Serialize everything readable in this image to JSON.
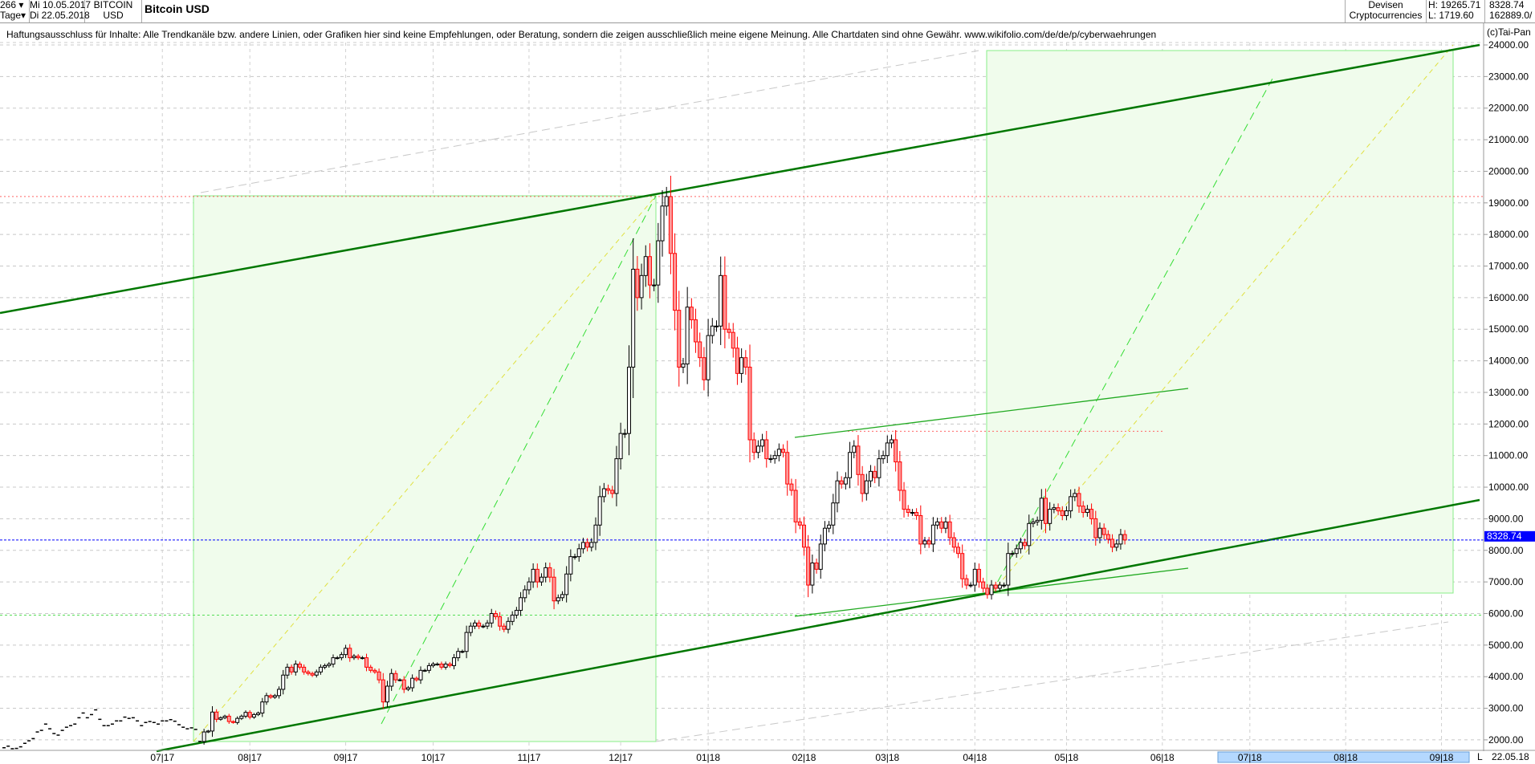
{
  "header": {
    "bar_count": "266",
    "period_unit": "Tage",
    "start_date": "Mi 10.05.2017",
    "end_date": "Di 22.05.2018",
    "symbol": "BITCOIN",
    "currency": "USD",
    "title": "Bitcoin USD",
    "category": "Devisen",
    "subcategory": "Cryptocurrencies",
    "high": "H: 19265.71",
    "low": "L: 1719.60",
    "last": "8328.74",
    "volume": "162889.0/"
  },
  "disclaimer": "Haftungsausschluss für Inhalte: Alle Trendkanäle bzw. andere Linien, oder Grafiken hier sind keine Empfehlungen, oder Beratung, sondern die zeigen ausschließlich meine eigene Meinung. Alle Chartdaten sind ohne Gewähr.  www.wikifolio.com/de/de/p/cyberwaehrungen",
  "copyright": "(c)Tai-Pan",
  "footer": {
    "mode": "L",
    "date": "22.05.18"
  },
  "colors": {
    "up": "#000000",
    "down": "#ff0000",
    "down_fill": "#ff9999",
    "channel": "#007700",
    "box": "#88ee88",
    "box_fill": "#f0fcec",
    "last_price": "#0000ff"
  },
  "chart_data": {
    "type": "candlestick",
    "ylim": [
      1500,
      24500
    ],
    "y_ticks": [
      "24000.00",
      "23000.00",
      "22000.00",
      "21000.00",
      "20000.00",
      "19000.00",
      "18000.00",
      "17000.00",
      "16000.00",
      "15000.00",
      "14000.00",
      "13000.00",
      "12000.00",
      "11000.00",
      "10000.00",
      "9000.00",
      "8000.00",
      "7000.00",
      "6000.00",
      "5000.00",
      "4000.00",
      "3000.00",
      "2000.00"
    ],
    "x_ticks": [
      {
        "label": "07|17",
        "bar": 38
      },
      {
        "label": "08|17",
        "bar": 59
      },
      {
        "label": "09|17",
        "bar": 82
      },
      {
        "label": "10|17",
        "bar": 103
      },
      {
        "label": "11|17",
        "bar": 126
      },
      {
        "label": "12|17",
        "bar": 148
      },
      {
        "label": "01|18",
        "bar": 169
      },
      {
        "label": "02|18",
        "bar": 192
      },
      {
        "label": "03|18",
        "bar": 212
      },
      {
        "label": "04|18",
        "bar": 233
      },
      {
        "label": "05|18",
        "bar": 255
      },
      {
        "label": "06|18",
        "bar": 278
      },
      {
        "label": "07|18",
        "bar": 299
      },
      {
        "label": "08|18",
        "bar": 322
      },
      {
        "label": "09|18",
        "bar": 345
      }
    ],
    "last_price": 8328.74,
    "closes": [
      1750,
      1800,
      1720,
      1730,
      1780,
      1890,
      1970,
      2040,
      2250,
      2300,
      2500,
      2350,
      2200,
      2150,
      2300,
      2400,
      2450,
      2500,
      2700,
      2850,
      2700,
      2800,
      2950,
      2650,
      2450,
      2450,
      2500,
      2600,
      2600,
      2720,
      2680,
      2700,
      2600,
      2450,
      2550,
      2580,
      2550,
      2500,
      2600,
      2600,
      2640,
      2590,
      2480,
      2400,
      2350,
      2380,
      2330,
      1950,
      2250,
      2280,
      2880,
      2650,
      2700,
      2750,
      2580,
      2550,
      2680,
      2750,
      2870,
      2720,
      2800,
      2850,
      3200,
      3400,
      3350,
      3400,
      3600,
      4050,
      4300,
      4150,
      4400,
      4300,
      4150,
      4100,
      4050,
      4150,
      4300,
      4350,
      4400,
      4600,
      4600,
      4700,
      4900,
      4600,
      4650,
      4600,
      4600,
      4300,
      4200,
      4150,
      3900,
      3200,
      3700,
      4100,
      3900,
      3900,
      3600,
      3650,
      3950,
      3900,
      4200,
      4200,
      4350,
      4400,
      4400,
      4300,
      4400,
      4350,
      4600,
      4800,
      4800,
      5400,
      5600,
      5700,
      5600,
      5600,
      5700,
      6000,
      5900,
      5600,
      5500,
      5750,
      5950,
      6100,
      6500,
      6750,
      7000,
      7400,
      7000,
      7150,
      7450,
      7150,
      6400,
      6500,
      6600,
      7250,
      7800,
      7800,
      8050,
      8250,
      8100,
      8250,
      8800,
      9700,
      9950,
      9900,
      9800,
      10900,
      11700,
      11700,
      13800,
      16900,
      16000,
      16700,
      17300,
      16400,
      16400,
      17800,
      18900,
      19200,
      17400,
      15600,
      13800,
      13900,
      15700,
      15300,
      14600,
      14100,
      13400,
      14800,
      15100,
      15100,
      16700,
      15000,
      14900,
      14400,
      13600,
      14100,
      13800,
      11500,
      11100,
      11300,
      11500,
      10900,
      10900,
      11000,
      11200,
      11100,
      10100,
      9900,
      8900,
      8800,
      8100,
      6900,
      7600,
      7400,
      8200,
      8700,
      8800,
      9500,
      10200,
      10100,
      10300,
      11100,
      11300,
      10400,
      9800,
      10200,
      10500,
      10300,
      10900,
      11000,
      11400,
      11500,
      10800,
      9900,
      9300,
      9200,
      9200,
      9100,
      8200,
      8300,
      8200,
      8800,
      8900,
      8700,
      8900,
      8400,
      8100,
      7900,
      7100,
      6900,
      6900,
      7400,
      7000,
      6800,
      6600,
      6900,
      6800,
      6900,
      6900,
      7900,
      7900,
      8050,
      8250,
      8150,
      8850,
      8900,
      8950,
      9650,
      8850,
      9300,
      9350,
      9250,
      9100,
      9250,
      9700,
      9800,
      9400,
      9200,
      9300,
      9000,
      8400,
      8700,
      8500,
      8350,
      8100,
      8200,
      8500,
      8328.74
    ]
  }
}
